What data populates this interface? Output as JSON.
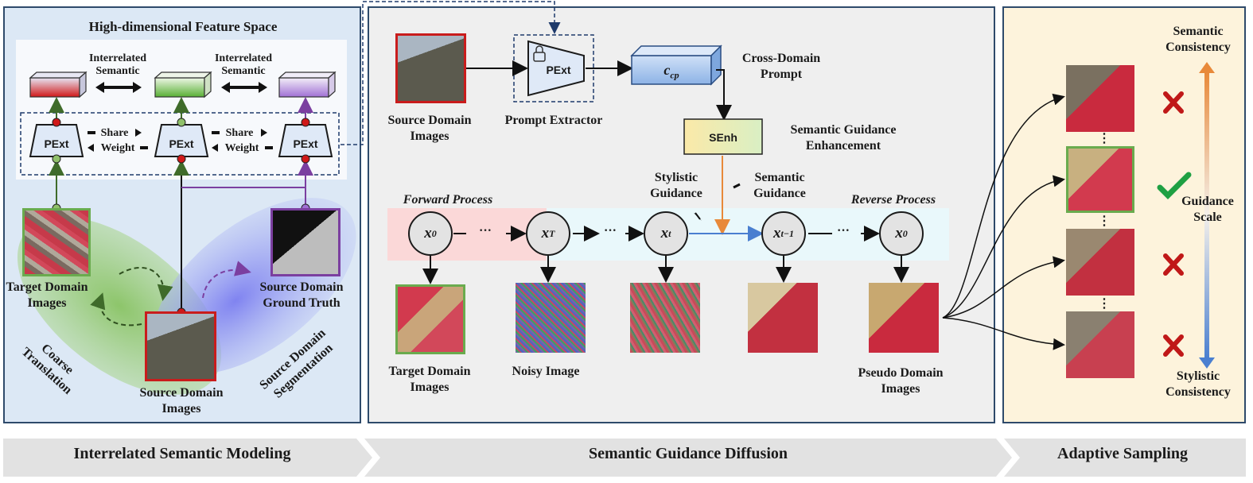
{
  "panel1": {
    "title": "High-dimensional Feature Space",
    "rel_left": "Interrelated\nSemantic",
    "rel_right": "Interrelated\nSemantic",
    "pext_label": "PExt",
    "share_label": "Share",
    "weight_label": "Weight",
    "target_images": "Target Domain\nImages",
    "source_images": "Source Domain\nImages",
    "source_gt": "Source Domain\nGround Truth",
    "coarse": "Coarse\nTranslation",
    "seg": "Source Domain\nSegmentation"
  },
  "panel2": {
    "source_images": "Source Domain\nImages",
    "prompt_extractor": "Prompt Extractor",
    "pext_label": "PExt",
    "ccp_label": "c",
    "ccp_sub": "cp",
    "cross_domain_prompt": "Cross-Domain\nPrompt",
    "senh_label": "SEnh",
    "senh_caption": "Semantic Guidance\nEnhancement",
    "forward_process": "Forward Process",
    "reverse_process": "Reverse Process",
    "stylistic_guidance": "Stylistic\nGuidance",
    "semantic_guidance": "Semantic\nGuidance",
    "node_x": "x",
    "node_sub_0": "0",
    "node_sub_T": "T",
    "node_sub_t": "t",
    "node_sub_tm1": "t−1",
    "dots": "···",
    "target_images": "Target Domain\nImages",
    "noisy_image": "Noisy Image",
    "pseudo_images": "Pseudo Domain\nImages"
  },
  "panel3": {
    "semantic_consistency": "Semantic\nConsistency",
    "guidance_scale": "Guidance\nScale",
    "stylistic_consistency": "Stylistic\nConsistency",
    "marks": [
      "cross",
      "check",
      "cross",
      "cross"
    ]
  },
  "banners": {
    "left": "Interrelated Semantic Modeling",
    "middle": "Semantic Guidance Diffusion",
    "right": "Adaptive Sampling"
  },
  "colors": {
    "panel1_bg": "#dce8f5",
    "panel2_bg": "#efefef",
    "panel3_bg": "#fdf3dc",
    "target_border": "#6aab4e",
    "source_border": "#c91c1c",
    "gt_border": "#7b3fa0",
    "forward_band": "#fbd8d8",
    "reverse_band": "#e9f8fb",
    "semantic_arrow": "#e8893a",
    "stylistic_arrow": "#4a7fd0",
    "cross": "#c01818",
    "check": "#1fa043"
  }
}
